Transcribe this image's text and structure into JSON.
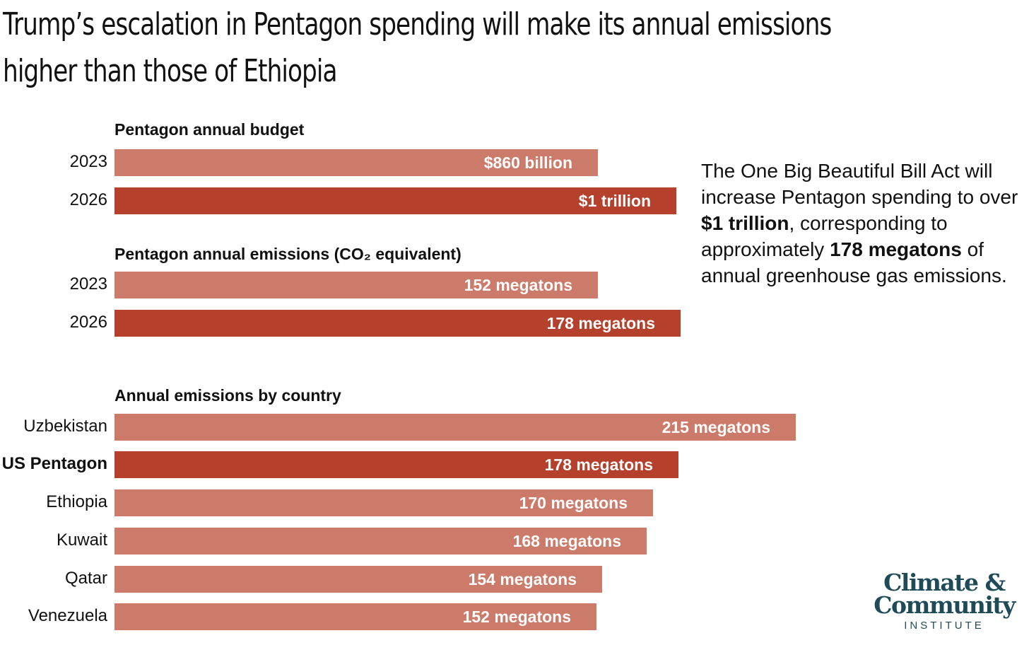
{
  "title_line1": "Trump’s escalation in Pentagon spending will make its annual emissions",
  "title_line2": "higher than those of Ethiopia",
  "note": {
    "part1": "The One Big Beautiful Bill Act will increase Pentagon spending to over ",
    "bold1": "$1 trillion",
    "part2": ", corresponding to approximately ",
    "bold2": "178 megatons",
    "part3": " of annual greenhouse gas emissions."
  },
  "logo": {
    "line1": "Climate &",
    "line2": "Community",
    "line3": "INSTITUTE"
  },
  "colors": {
    "light_bar": "#cc7a6a",
    "dark_bar": "#b5412d",
    "logo": "#1f4b59"
  },
  "chart_data": [
    {
      "type": "bar",
      "orientation": "horizontal",
      "title": "Pentagon annual budget",
      "unit": "billion USD",
      "categories": [
        "2023",
        "2026"
      ],
      "values": [
        860,
        1000
      ],
      "labels": [
        "$860 billion",
        "$1 trillion"
      ],
      "highlight": [
        false,
        true
      ]
    },
    {
      "type": "bar",
      "orientation": "horizontal",
      "title": "Pentagon annual emissions (CO₂ equivalent)",
      "unit": "megatons",
      "categories": [
        "2023",
        "2026"
      ],
      "values": [
        152,
        178
      ],
      "labels": [
        "152 megatons",
        "178 megatons"
      ],
      "highlight": [
        false,
        true
      ]
    },
    {
      "type": "bar",
      "orientation": "horizontal",
      "title": "Annual emissions by country",
      "unit": "megatons",
      "categories": [
        "Uzbekistan",
        "US Pentagon",
        "Ethiopia",
        "Kuwait",
        "Qatar",
        "Venezuela"
      ],
      "values": [
        215,
        178,
        170,
        168,
        154,
        152
      ],
      "labels": [
        "215 megatons",
        "178 megatons",
        "170 megatons",
        "168 megatons",
        "154 megatons",
        "152 megatons"
      ],
      "highlight": [
        false,
        true,
        false,
        false,
        false,
        false
      ]
    }
  ]
}
